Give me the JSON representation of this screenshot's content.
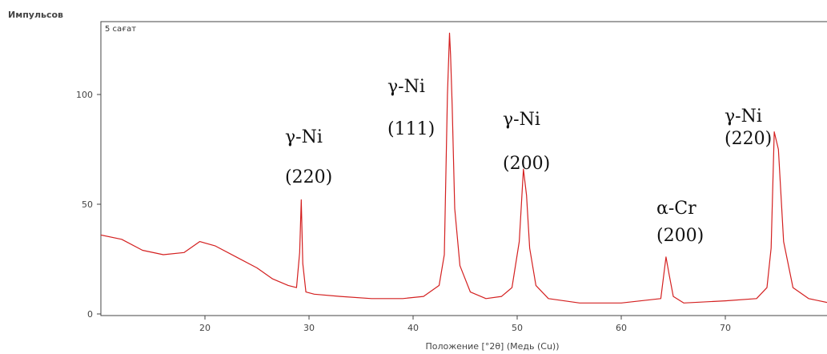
{
  "chart_data": {
    "type": "line",
    "ylabel": "Импульсов",
    "xlabel": "Положение [°2θ] (Медь (Cu))",
    "box_label": "5 сағат",
    "xlim": [
      10,
      80
    ],
    "ylim": [
      0,
      135
    ],
    "x_ticks": [
      20,
      30,
      40,
      50,
      60,
      70
    ],
    "y_ticks": [
      0,
      50,
      100
    ],
    "line_color": "#d42020",
    "series": [
      {
        "x": [
          10,
          12,
          14,
          16,
          18,
          19.5,
          21,
          23,
          25,
          26.5,
          28,
          28.8,
          29.1,
          29.25,
          29.4,
          29.7,
          30.5,
          33,
          36,
          39,
          41,
          42.5,
          43,
          43.3,
          43.5,
          43.6,
          43.75,
          44,
          44.5,
          45.5,
          47,
          48.5,
          49.5,
          50.2,
          50.6,
          50.9,
          51.2,
          51.8,
          53,
          56,
          60,
          63.8,
          64.3,
          64.6,
          65,
          66,
          70,
          73,
          74,
          74.4,
          74.7,
          75.1,
          75.6,
          76.5,
          78,
          80
        ],
        "y": [
          36,
          34,
          29,
          27,
          28,
          33,
          31,
          26,
          21,
          16,
          13,
          12,
          28,
          52,
          23,
          10,
          9,
          8,
          7,
          7,
          8,
          13,
          27,
          100,
          128,
          118,
          95,
          48,
          22,
          10,
          7,
          8,
          12,
          33,
          66,
          54,
          30,
          13,
          7,
          5,
          5,
          7,
          26,
          18,
          8,
          5,
          6,
          7,
          12,
          30,
          83,
          75,
          33,
          12,
          7,
          5
        ]
      }
    ],
    "annotations": [
      {
        "line1": "γ-Ni",
        "line2": "(220)"
      },
      {
        "line1": "γ-Ni",
        "line2": "(111)"
      },
      {
        "line1": "γ-Ni",
        "line2": "(200)"
      },
      {
        "line1": "α-Cr",
        "line2": "(200)"
      },
      {
        "line1": "γ-Ni",
        "line2": "(220)"
      }
    ]
  }
}
